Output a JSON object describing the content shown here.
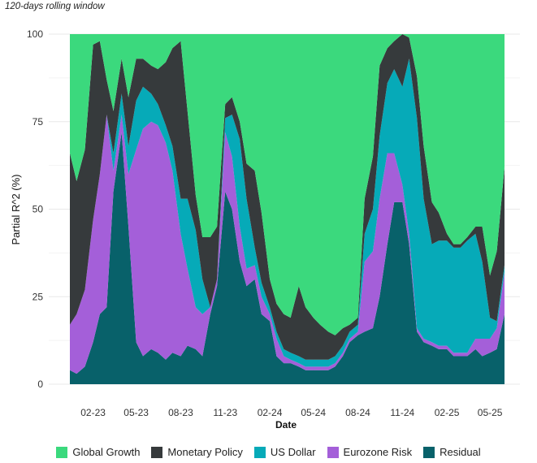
{
  "chart_data": {
    "type": "area",
    "stacked": true,
    "title": "",
    "subtitle": "120-days rolling window",
    "xlabel": "Date",
    "ylabel": "Partial R^2 (%)",
    "ylim": [
      0,
      100
    ],
    "yticks": [
      0,
      25,
      50,
      75,
      100
    ],
    "xlim": [
      "2022-12-15",
      "2025-05-31"
    ],
    "xticks": [
      "02-23",
      "05-23",
      "08-23",
      "11-23",
      "02-24",
      "05-24",
      "08-24",
      "11-24",
      "02-25",
      "05-25"
    ],
    "xtick_dates": [
      "2023-02-01",
      "2023-05-01",
      "2023-08-01",
      "2023-11-01",
      "2024-02-01",
      "2024-05-01",
      "2024-08-01",
      "2024-11-01",
      "2025-02-01",
      "2025-05-01"
    ],
    "grid": true,
    "legend_position": "bottom",
    "x": [
      "2022-12-15",
      "2022-12-29",
      "2023-01-15",
      "2023-02-01",
      "2023-02-15",
      "2023-03-01",
      "2023-03-15",
      "2023-04-01",
      "2023-04-15",
      "2023-05-01",
      "2023-05-15",
      "2023-06-01",
      "2023-06-15",
      "2023-07-01",
      "2023-07-15",
      "2023-08-01",
      "2023-08-15",
      "2023-09-01",
      "2023-09-15",
      "2023-10-01",
      "2023-10-15",
      "2023-11-01",
      "2023-11-15",
      "2023-12-01",
      "2023-12-15",
      "2024-01-01",
      "2024-01-15",
      "2024-02-01",
      "2024-02-15",
      "2024-03-01",
      "2024-03-15",
      "2024-04-01",
      "2024-04-15",
      "2024-05-01",
      "2024-05-15",
      "2024-06-01",
      "2024-06-15",
      "2024-07-01",
      "2024-07-15",
      "2024-08-01",
      "2024-08-15",
      "2024-09-01",
      "2024-09-15",
      "2024-10-01",
      "2024-10-15",
      "2024-11-01",
      "2024-11-15",
      "2024-12-01",
      "2024-12-15",
      "2025-01-01",
      "2025-01-15",
      "2025-02-01",
      "2025-02-15",
      "2025-03-01",
      "2025-03-15",
      "2025-04-01",
      "2025-04-15",
      "2025-05-01",
      "2025-05-15",
      "2025-05-31"
    ],
    "series": [
      {
        "name": "Residual",
        "color": "#08616a",
        "values": [
          4,
          3,
          5,
          12,
          20,
          22,
          55,
          72,
          45,
          12,
          8,
          10,
          9,
          7,
          9,
          8,
          11,
          10,
          8,
          20,
          28,
          55,
          50,
          35,
          28,
          30,
          20,
          18,
          8,
          6,
          6,
          5,
          4,
          4,
          4,
          4,
          5,
          8,
          12,
          14,
          15,
          16,
          25,
          40,
          52,
          52,
          40,
          15,
          12,
          11,
          10,
          10,
          8,
          8,
          8,
          10,
          8,
          9,
          10,
          20
        ]
      },
      {
        "name": "Eurozone Risk",
        "color": "#a45fd9",
        "values": [
          13,
          17,
          22,
          35,
          40,
          55,
          6,
          5,
          15,
          55,
          65,
          65,
          65,
          62,
          52,
          35,
          22,
          12,
          12,
          2,
          2,
          17,
          15,
          10,
          5,
          4,
          5,
          2,
          5,
          2,
          1,
          1,
          1,
          1,
          1,
          1,
          1,
          1,
          1,
          1,
          20,
          22,
          28,
          26,
          14,
          5,
          3,
          1,
          1,
          1,
          1,
          1,
          1,
          1,
          1,
          3,
          5,
          4,
          6,
          12
        ]
      },
      {
        "name": "US Dollar",
        "color": "#06aab8",
        "values": [
          0,
          0,
          0,
          0,
          0,
          0,
          5,
          6,
          8,
          14,
          12,
          8,
          6,
          5,
          7,
          10,
          20,
          22,
          10,
          0,
          0,
          4,
          12,
          25,
          20,
          5,
          4,
          2,
          2,
          2,
          2,
          2,
          2,
          2,
          2,
          2,
          2,
          2,
          2,
          2,
          8,
          12,
          18,
          20,
          24,
          28,
          50,
          60,
          40,
          28,
          30,
          30,
          30,
          30,
          32,
          30,
          22,
          6,
          2,
          2
        ]
      },
      {
        "name": "Monetary Policy",
        "color": "#363a3c",
        "values": [
          49,
          38,
          40,
          50,
          38,
          10,
          12,
          10,
          14,
          12,
          8,
          8,
          10,
          18,
          28,
          45,
          25,
          10,
          12,
          20,
          15,
          4,
          5,
          5,
          10,
          22,
          20,
          8,
          8,
          10,
          10,
          20,
          15,
          12,
          10,
          8,
          6,
          5,
          2,
          2,
          10,
          15,
          20,
          10,
          8,
          15,
          6,
          12,
          15,
          12,
          8,
          2,
          1,
          1,
          1,
          2,
          10,
          12,
          20,
          28
        ]
      },
      {
        "name": "Global Growth",
        "color": "#3bd97d",
        "values": [
          34,
          42,
          33,
          3,
          2,
          13,
          22,
          7,
          18,
          7,
          7,
          9,
          10,
          8,
          4,
          2,
          22,
          46,
          58,
          58,
          55,
          20,
          18,
          25,
          37,
          39,
          51,
          70,
          77,
          80,
          81,
          72,
          78,
          81,
          83,
          85,
          86,
          84,
          83,
          81,
          47,
          35,
          9,
          4,
          2,
          0,
          1,
          12,
          32,
          48,
          51,
          57,
          60,
          60,
          58,
          55,
          55,
          69,
          62,
          38
        ]
      }
    ]
  }
}
